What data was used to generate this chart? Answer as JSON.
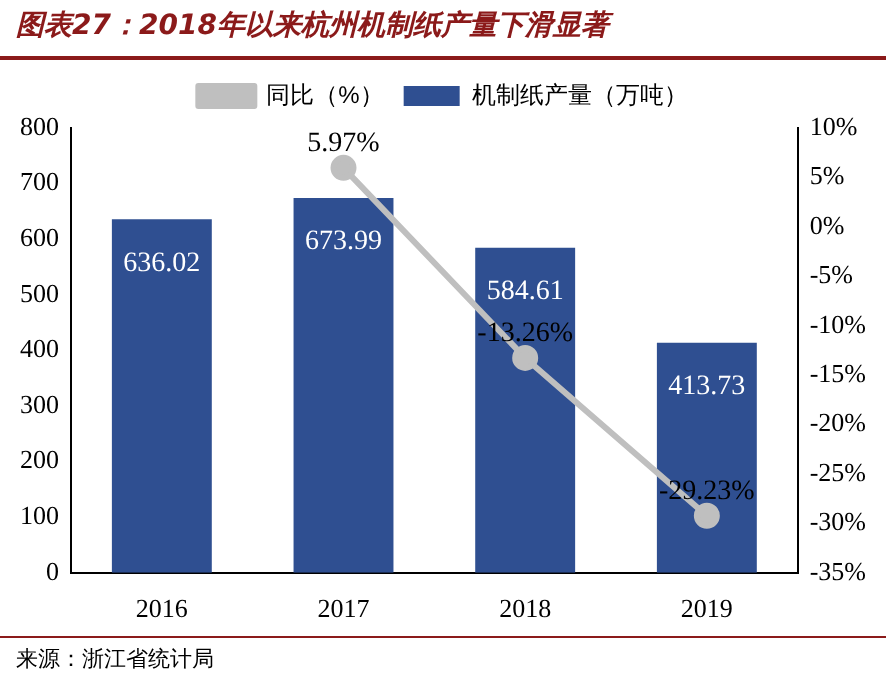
{
  "chart_data": {
    "type": "bar",
    "title": "图表27：2018年以来杭州机制纸产量下滑显著",
    "categories": [
      "2016",
      "2017",
      "2018",
      "2019"
    ],
    "series": [
      {
        "name": "机制纸产量（万吨）",
        "color": "#2f4f91",
        "values": [
          636.02,
          673.99,
          584.61,
          413.73
        ],
        "value_labels": [
          "636.02",
          "673.99",
          "584.61",
          "413.73"
        ]
      },
      {
        "name": "同比（%）",
        "type": "line",
        "axis": "y2",
        "color": "#bfbfbf",
        "values": [
          null,
          5.97,
          -13.26,
          -29.23
        ],
        "value_labels": [
          null,
          "5.97%",
          "-13.26%",
          "-29.23%"
        ]
      }
    ],
    "ylim": [
      0,
      800
    ],
    "yticks": [
      0,
      100,
      200,
      300,
      400,
      500,
      600,
      700,
      800
    ],
    "y2lim": [
      -35,
      10
    ],
    "y2ticks": [
      {
        "value": -35,
        "label": "-35%"
      },
      {
        "value": -30,
        "label": "-30%"
      },
      {
        "value": -25,
        "label": "-25%"
      },
      {
        "value": -20,
        "label": "-20%"
      },
      {
        "value": -15,
        "label": "-15%"
      },
      {
        "value": -10,
        "label": "-10%"
      },
      {
        "value": -5,
        "label": "-5%"
      },
      {
        "value": 0,
        "label": "0%"
      },
      {
        "value": 5,
        "label": "5%"
      },
      {
        "value": 10,
        "label": "10%"
      }
    ],
    "legend": "top",
    "grid": false,
    "marker": "circle",
    "annotations": [
      "来源：浙江省统计局"
    ]
  }
}
